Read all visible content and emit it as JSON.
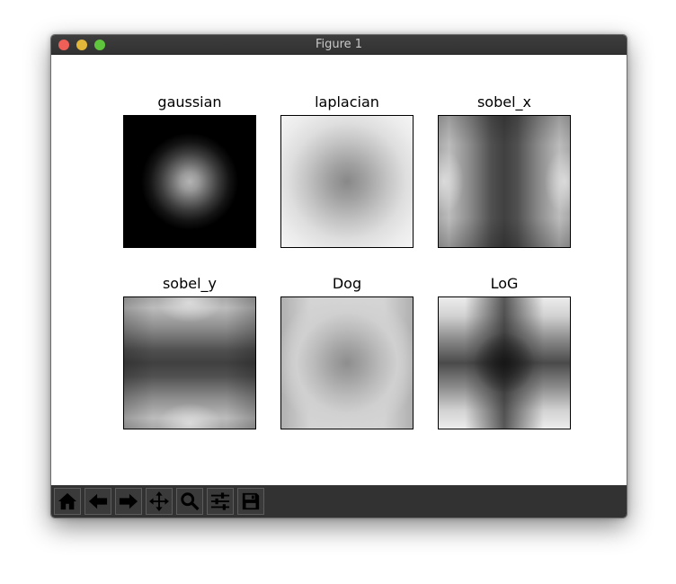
{
  "window": {
    "title": "Figure 1",
    "traffic_lights": {
      "close_color": "#ed5f57",
      "minimize_color": "#e3b739",
      "maximize_color": "#5fc53c"
    }
  },
  "figure": {
    "colormap": "gray",
    "subplots": [
      {
        "title": "gaussian",
        "pattern": "center-bright-blob"
      },
      {
        "title": "laplacian",
        "pattern": "center-dark-soft"
      },
      {
        "title": "sobel_x",
        "pattern": "dark-vertical-band"
      },
      {
        "title": "sobel_y",
        "pattern": "dark-horizontal-band"
      },
      {
        "title": "Dog",
        "pattern": "center-dark-faint"
      },
      {
        "title": "LoG",
        "pattern": "dark-cross"
      }
    ]
  },
  "toolbar": {
    "icon_color": "#000000",
    "tools": [
      {
        "icon": "home-icon"
      },
      {
        "icon": "back-arrow-icon"
      },
      {
        "icon": "forward-arrow-icon"
      },
      {
        "icon": "pan-move-icon"
      },
      {
        "icon": "zoom-magnifier-icon"
      },
      {
        "icon": "configure-subplots-icon"
      },
      {
        "icon": "save-floppy-icon"
      }
    ]
  }
}
